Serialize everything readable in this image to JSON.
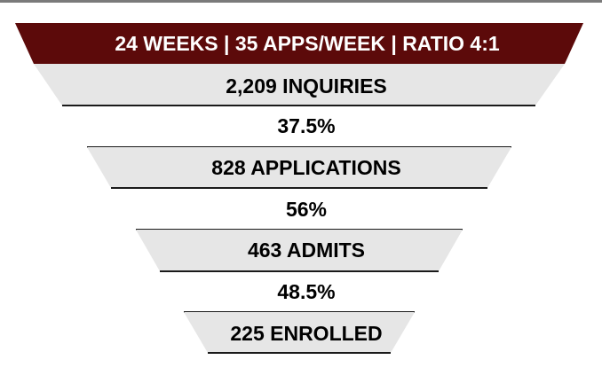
{
  "header": {
    "text": "24 WEEKS | 35 APPS/WEEK | RATIO 4:1",
    "color": "#5c0a0a"
  },
  "stages": [
    {
      "label": "2,209 INQUIRIES"
    },
    {
      "label": "828 APPLICATIONS"
    },
    {
      "label": "463 ADMITS"
    },
    {
      "label": "225 ENROLLED"
    }
  ],
  "rates": [
    {
      "label": "37.5%"
    },
    {
      "label": "56%"
    },
    {
      "label": "48.5%"
    }
  ],
  "colors": {
    "stage_fill": "#e6e6e6",
    "stage_edge": "#1a1a1a",
    "header_fill": "#5c0a0a"
  }
}
